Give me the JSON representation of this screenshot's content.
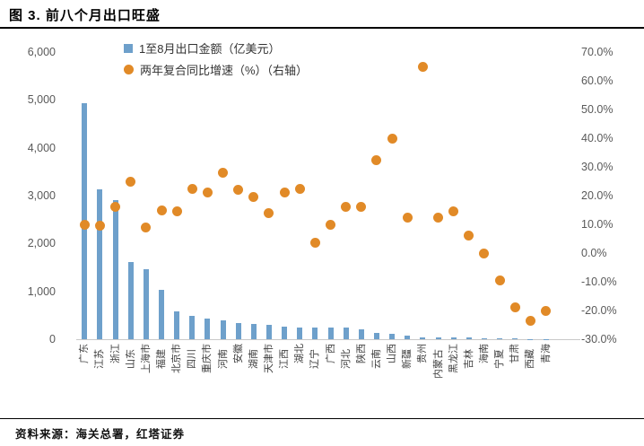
{
  "title": "图 3. 前八个月出口旺盛",
  "source": "资料来源：海关总署，红塔证券",
  "legend": {
    "bar_label": "1至8月出口金额（亿美元）",
    "dot_label": "两年复合同比增速（%）（右轴）"
  },
  "colors": {
    "bar": "#6ea0cb",
    "dot": "#e18a27",
    "axis_text": "#595959",
    "axis_line": "#c9c9c9",
    "title_text": "#000000"
  },
  "chart_data": {
    "type": "bar",
    "subtype": "bar + scatter combo, dual axis",
    "title": "图 3. 前八个月出口旺盛",
    "categories": [
      "广东",
      "江苏",
      "浙江",
      "山东",
      "上海市",
      "福建",
      "北京市",
      "四川",
      "重庆市",
      "河南",
      "安徽",
      "湖南",
      "天津市",
      "江西",
      "湖北",
      "辽宁",
      "广西",
      "河北",
      "陕西",
      "云南",
      "山西",
      "新疆",
      "贵州",
      "内蒙古",
      "黑龙江",
      "吉林",
      "海南",
      "宁夏",
      "甘肃",
      "西藏",
      "青海"
    ],
    "series": [
      {
        "name": "1至8月出口金额（亿美元）",
        "type": "bar",
        "axis": "left",
        "values": [
          4930,
          3130,
          2915,
          1620,
          1470,
          1040,
          590,
          480,
          440,
          395,
          345,
          325,
          295,
          260,
          250,
          245,
          240,
          235,
          210,
          130,
          120,
          75,
          45,
          40,
          34,
          30,
          25,
          15,
          12,
          4,
          8
        ]
      },
      {
        "name": "两年复合同比增速（%）（右轴）",
        "type": "scatter",
        "axis": "right",
        "values": [
          10,
          9.5,
          16,
          25,
          9,
          15,
          14.5,
          22.5,
          21,
          28,
          22,
          19.5,
          14,
          21,
          22.5,
          3.5,
          10,
          16,
          16,
          32.5,
          40,
          12.5,
          65,
          12.5,
          14.5,
          6,
          0,
          -9.5,
          -19,
          -23.5,
          -20
        ]
      }
    ],
    "left_axis": {
      "min": 0,
      "max": 6000,
      "step": 1000,
      "tick_labels": [
        "0",
        "1,000",
        "2,000",
        "3,000",
        "4,000",
        "5,000",
        "6,000"
      ]
    },
    "right_axis": {
      "min": -30,
      "max": 70,
      "step": 10,
      "tick_labels": [
        "-30.0%",
        "-20.0%",
        "-10.0%",
        "0.0%",
        "10.0%",
        "20.0%",
        "30.0%",
        "40.0%",
        "50.0%",
        "60.0%",
        "70.0%"
      ],
      "unit": "%"
    },
    "grid": false,
    "legend_position": "top-left-inside",
    "x_label_rotation": -90
  }
}
